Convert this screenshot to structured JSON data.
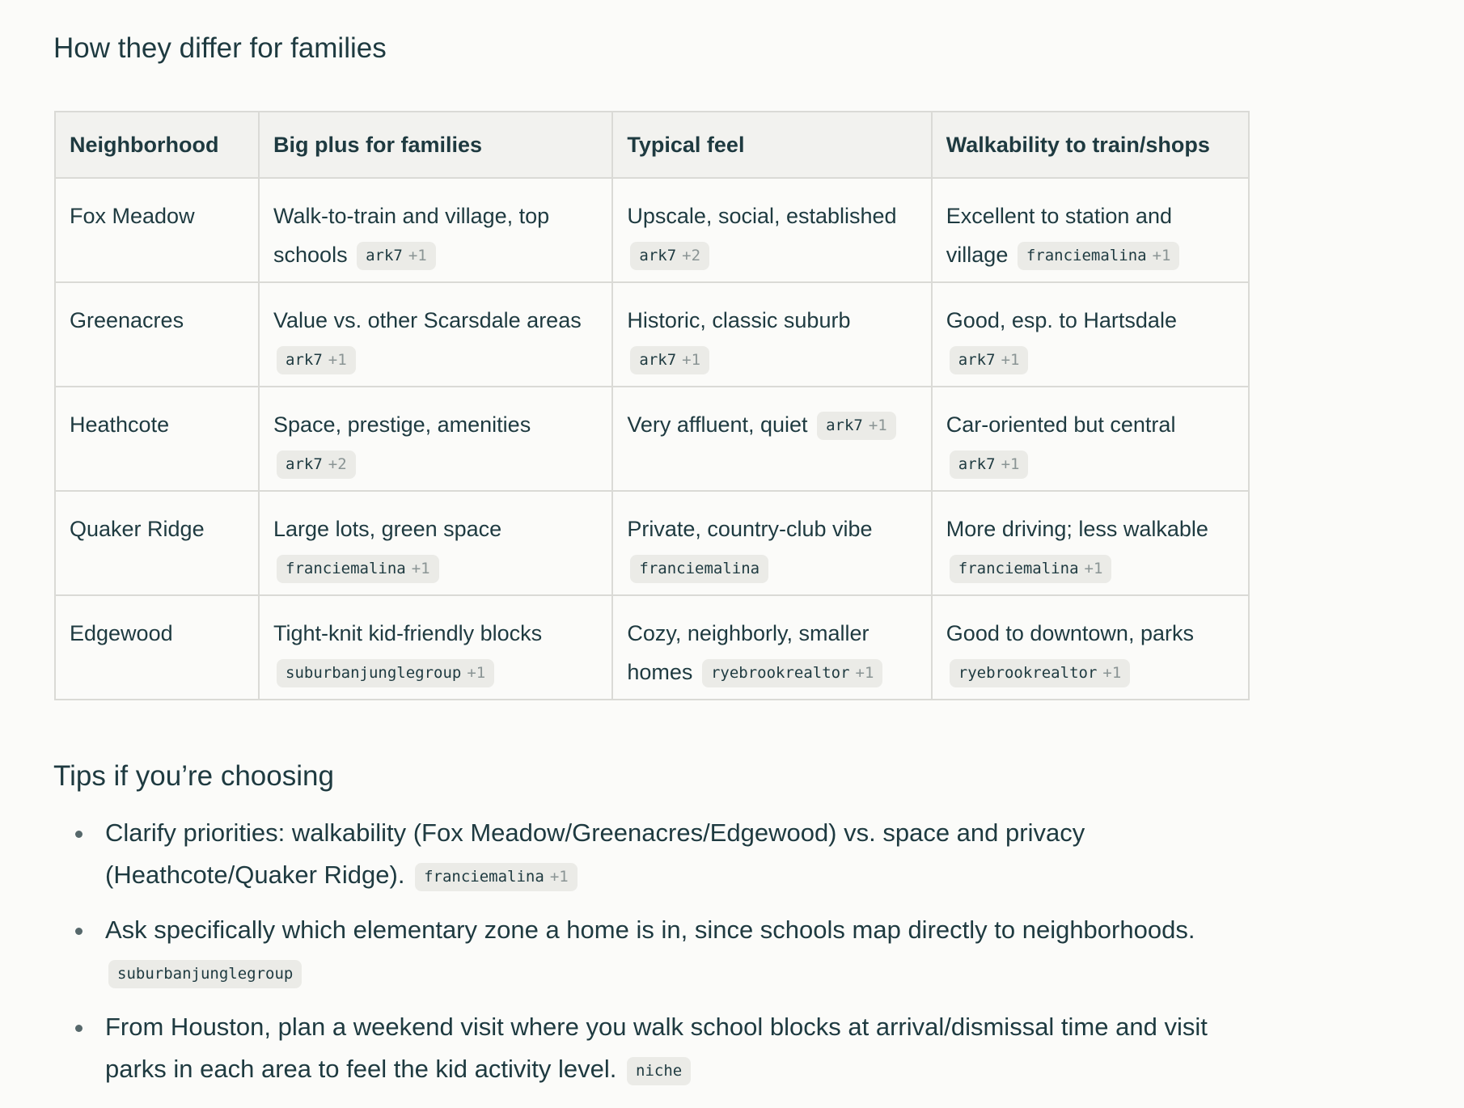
{
  "sections": {
    "families_heading": "How they differ for families",
    "tips_heading": "Tips if you’re choosing"
  },
  "table": {
    "headers": [
      "Neighborhood",
      "Big plus for families",
      "Typical feel",
      "Walkability to train/shops"
    ],
    "rows": [
      [
        {
          "text": "Fox Meadow"
        },
        {
          "text": "Walk-to-train and village, top schools",
          "chip": "ark7",
          "more": "+1"
        },
        {
          "text": "Upscale, social, established",
          "chip": "ark7",
          "more": "+2"
        },
        {
          "text": "Excellent to station and village",
          "chip": "franciemalina",
          "more": "+1"
        }
      ],
      [
        {
          "text": "Greenacres"
        },
        {
          "text": "Value vs. other Scarsdale areas",
          "chip": "ark7",
          "more": "+1"
        },
        {
          "text": "Historic, classic suburb",
          "chip": "ark7",
          "more": "+1"
        },
        {
          "text": "Good, esp. to Hartsdale",
          "chip": "ark7",
          "more": "+1"
        }
      ],
      [
        {
          "text": "Heathcote"
        },
        {
          "text": "Space, prestige, amenities",
          "chip": "ark7",
          "more": "+2"
        },
        {
          "text": "Very affluent, quiet",
          "chip": "ark7",
          "more": "+1"
        },
        {
          "text": "Car-oriented but central",
          "chip": "ark7",
          "more": "+1"
        }
      ],
      [
        {
          "text": "Quaker Ridge"
        },
        {
          "text": "Large lots, green space",
          "chip": "franciemalina",
          "more": "+1"
        },
        {
          "text": "Private, country-club vibe",
          "chip": "franciemalina"
        },
        {
          "text": "More driving; less walkable",
          "chip": "franciemalina",
          "more": "+1"
        }
      ],
      [
        {
          "text": "Edgewood"
        },
        {
          "text": "Tight-knit kid-friendly blocks",
          "chip": "suburbanjunglegroup",
          "more": "+1"
        },
        {
          "text": "Cozy, neighborly, smaller homes",
          "chip": "ryebrookrealtor",
          "more": "+1"
        },
        {
          "text": "Good to downtown, parks",
          "chip": "ryebrookrealtor",
          "more": "+1"
        }
      ]
    ]
  },
  "tips": [
    {
      "text": "Clarify priorities: walkability (Fox Meadow/Greenacres/Edgewood) vs. space and privacy (Heathcote/Quaker Ridge).",
      "chip": "franciemalina",
      "more": "+1"
    },
    {
      "text": "Ask specifically which elementary zone a home is in, since schools map directly to neighborhoods.",
      "chip": "suburbanjunglegroup"
    },
    {
      "text": "From Houston, plan a weekend visit where you walk school blocks at arrival/dismissal time and visit parks in each area to feel the kid activity level.",
      "chip": "niche"
    }
  ]
}
